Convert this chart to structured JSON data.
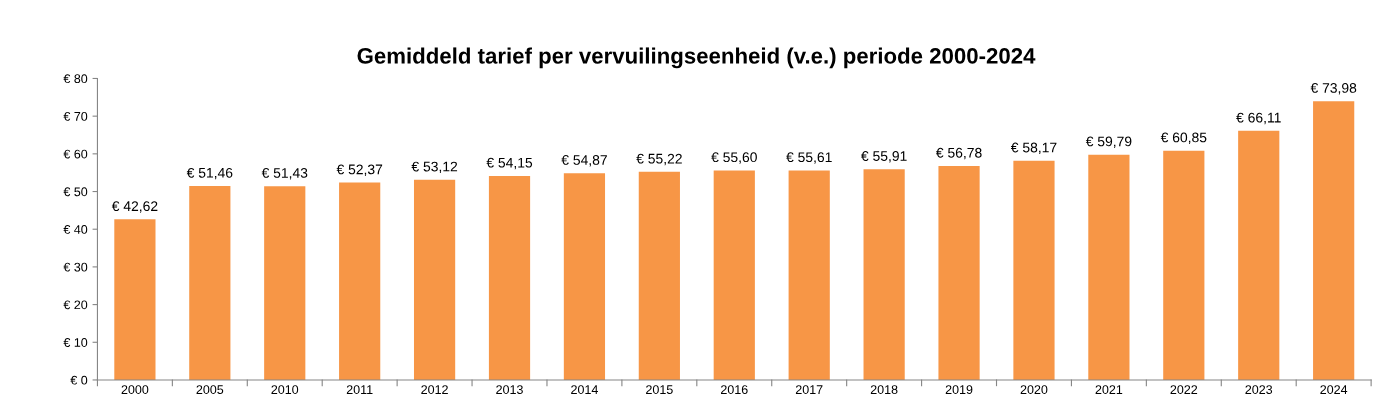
{
  "chart_data": {
    "type": "bar",
    "title": "Gemiddeld tarief per vervuilingseenheid (v.e.) periode 2000-2024",
    "categories": [
      "2000",
      "2005",
      "2010",
      "2011",
      "2012",
      "2013",
      "2014",
      "2015",
      "2016",
      "2017",
      "2018",
      "2019",
      "2020",
      "2021",
      "2022",
      "2023",
      "2024"
    ],
    "values": [
      42.62,
      51.46,
      51.43,
      52.37,
      53.12,
      54.15,
      54.87,
      55.22,
      55.6,
      55.61,
      55.91,
      56.78,
      58.17,
      59.79,
      60.85,
      66.11,
      73.98
    ],
    "value_labels": [
      "€ 42,62",
      "€ 51,46",
      "€ 51,43",
      "€ 52,37",
      "€ 53,12",
      "€ 54,15",
      "€ 54,87",
      "€ 55,22",
      "€ 55,60",
      "€ 55,61",
      "€ 55,91",
      "€ 56,78",
      "€ 58,17",
      "€ 59,79",
      "€ 60,85",
      "€ 66,11",
      "€ 73,98"
    ],
    "color": "#f79646",
    "ylim": [
      0,
      80
    ],
    "yticks": [
      {
        "value": 0,
        "label": "€ 0"
      },
      {
        "value": 10,
        "label": "€ 10"
      },
      {
        "value": 20,
        "label": "€ 20"
      },
      {
        "value": 30,
        "label": "€ 30"
      },
      {
        "value": 40,
        "label": "€ 40"
      },
      {
        "value": 50,
        "label": "€ 50"
      },
      {
        "value": 60,
        "label": "€ 60"
      },
      {
        "value": 70,
        "label": "€ 70"
      },
      {
        "value": 80,
        "label": "€ 80"
      }
    ],
    "grid": false
  }
}
